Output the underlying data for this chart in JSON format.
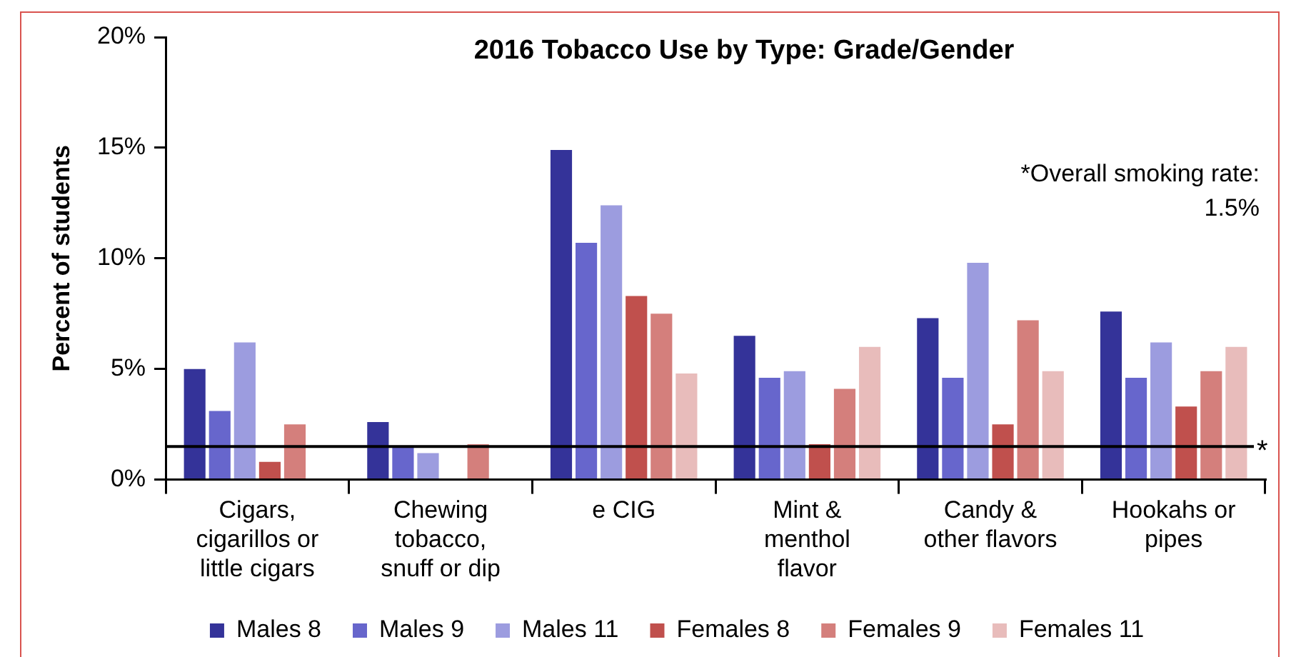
{
  "chart_data": {
    "type": "bar",
    "title": "2016 Tobacco Use by Type: Grade/Gender",
    "ylabel": "Percent of students",
    "categories": [
      "Cigars, cigarillos or little cigars",
      "Chewing tobacco, snuff or dip",
      "e CIG",
      "Mint & menthol flavor",
      "Candy & other flavors",
      "Hookahs or pipes"
    ],
    "series": [
      {
        "name": "Males 8",
        "color": "#343399",
        "values": [
          5.0,
          2.6,
          14.9,
          6.5,
          7.3,
          7.6
        ]
      },
      {
        "name": "Males 9",
        "color": "#6766cc",
        "values": [
          3.1,
          1.5,
          10.7,
          4.6,
          4.6,
          4.6
        ]
      },
      {
        "name": "Males 11",
        "color": "#9c9cdf",
        "values": [
          6.2,
          1.2,
          12.4,
          4.9,
          9.8,
          6.2
        ]
      },
      {
        "name": "Females 8",
        "color": "#c0504d",
        "values": [
          0.8,
          null,
          8.3,
          1.6,
          2.5,
          3.3
        ]
      },
      {
        "name": "Females 9",
        "color": "#d47f7c",
        "values": [
          2.5,
          1.6,
          7.5,
          4.1,
          7.2,
          4.9
        ]
      },
      {
        "name": "Females 11",
        "color": "#e8bcbb",
        "values": [
          null,
          null,
          4.8,
          6.0,
          4.9,
          6.0
        ]
      }
    ],
    "ylim": [
      0,
      20
    ],
    "yticks": [
      {
        "value": 0,
        "label": "0%"
      },
      {
        "value": 5,
        "label": "5%"
      },
      {
        "value": 10,
        "label": "10%"
      },
      {
        "value": 15,
        "label": "15%"
      },
      {
        "value": 20,
        "label": "20%"
      }
    ],
    "ref_lines": [
      {
        "axis": "y",
        "value": 1.5,
        "label": "*",
        "color": "#000000"
      }
    ],
    "annotations": [
      "*Overall smoking rate: 1.5%"
    ],
    "grid": false,
    "legend": "bottom"
  }
}
